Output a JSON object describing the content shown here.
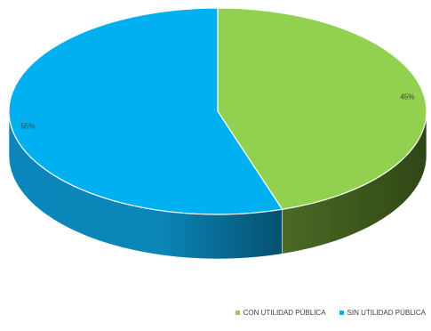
{
  "chart_data": {
    "type": "pie",
    "style": "3d",
    "title": "",
    "categories": [
      "CON  UTILIDAD PÚBLICA",
      "SIN  UTILIDAD PÚBLICA"
    ],
    "values": [
      45,
      55
    ],
    "data_labels": [
      "45%",
      "55%"
    ],
    "colors": [
      "#92D050",
      "#00B0F0"
    ],
    "side_colors": [
      "#3F5B1E",
      "#0A7FB0"
    ],
    "legend_position": "bottom-right"
  }
}
